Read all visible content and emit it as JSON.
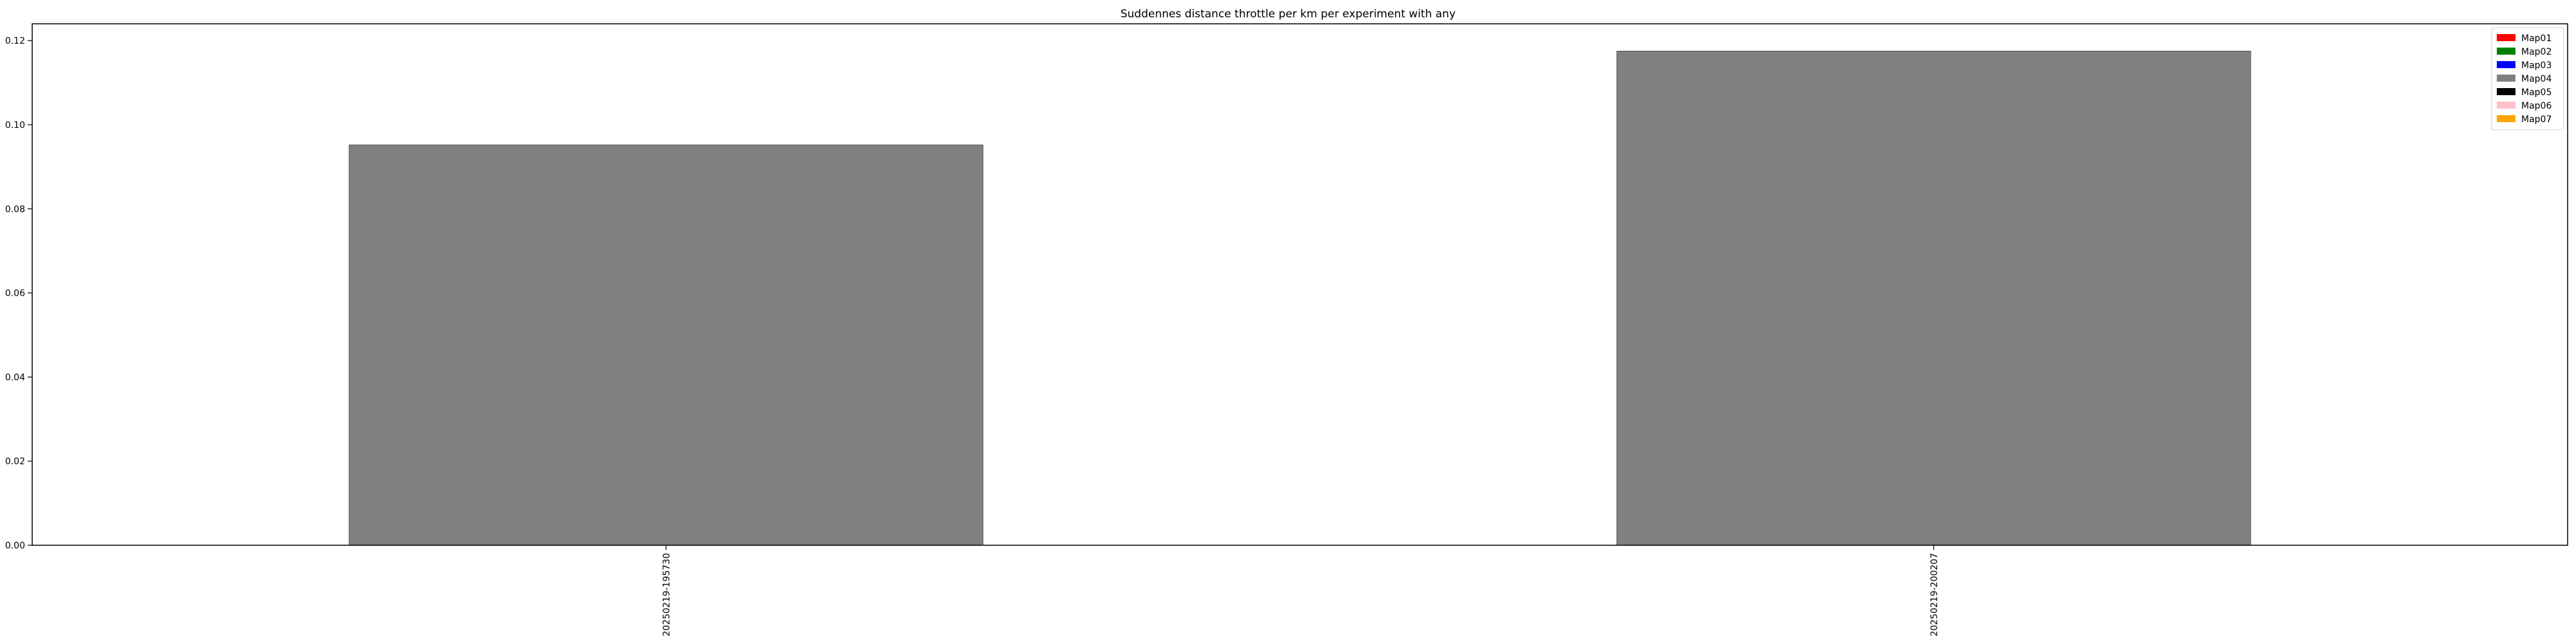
{
  "chart_data": {
    "type": "bar",
    "title": "Suddennes distance throttle per km per experiment with any",
    "xlabel": "",
    "ylabel": "",
    "categories": [
      "20250219-195730",
      "20250219-200207"
    ],
    "values": [
      0.0952,
      0.1175
    ],
    "bar_color": "#808080",
    "ylim": [
      0,
      0.124
    ],
    "yticks": [
      0.0,
      0.02,
      0.04,
      0.06,
      0.08,
      0.1,
      0.12
    ],
    "ytick_labels": [
      "0.00",
      "0.02",
      "0.04",
      "0.06",
      "0.08",
      "0.10",
      "0.12"
    ],
    "grid": false,
    "legend_position": "top-right",
    "legend": [
      {
        "label": "Map01",
        "color": "#ff0000"
      },
      {
        "label": "Map02",
        "color": "#008000"
      },
      {
        "label": "Map03",
        "color": "#0000ff"
      },
      {
        "label": "Map04",
        "color": "#808080"
      },
      {
        "label": "Map05",
        "color": "#000000"
      },
      {
        "label": "Map06",
        "color": "#ffc0cb"
      },
      {
        "label": "Map07",
        "color": "#ffa500"
      }
    ]
  }
}
